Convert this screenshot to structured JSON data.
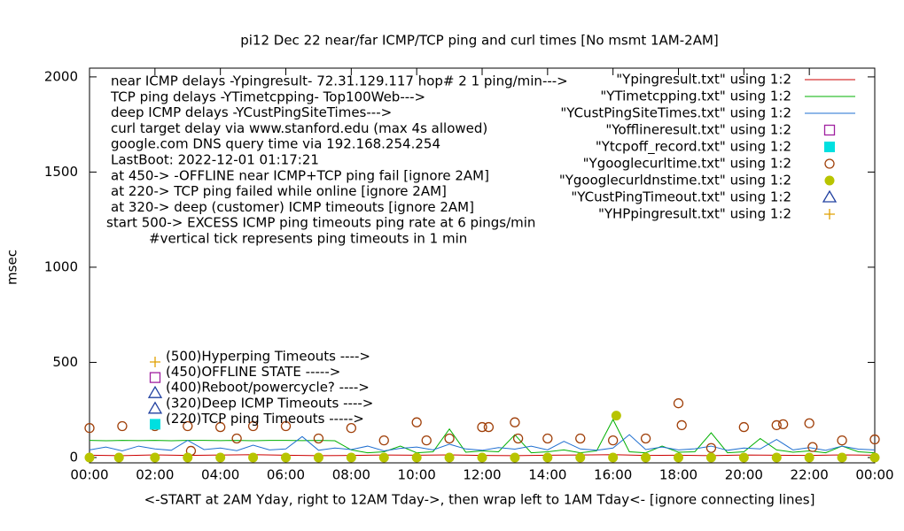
{
  "chart_data": {
    "type": "line",
    "title": "pi12 Dec 22  near/far ICMP/TCP ping and curl times [No msmt 1AM-2AM]",
    "xlabel": "<-START at 2AM Yday, right to 12AM Tday->, then wrap left to 1AM Tday<- [ignore connecting lines]",
    "ylabel": "msec",
    "xlim": [
      0,
      24
    ],
    "ylim": [
      -28,
      2046
    ],
    "xticks": [
      {
        "value": 0,
        "label": "00:00"
      },
      {
        "value": 2,
        "label": "02:00"
      },
      {
        "value": 4,
        "label": "04:00"
      },
      {
        "value": 6,
        "label": "06:00"
      },
      {
        "value": 8,
        "label": "08:00"
      },
      {
        "value": 10,
        "label": "10:00"
      },
      {
        "value": 12,
        "label": "12:00"
      },
      {
        "value": 14,
        "label": "14:00"
      },
      {
        "value": 16,
        "label": "16:00"
      },
      {
        "value": 18,
        "label": "18:00"
      },
      {
        "value": 20,
        "label": "20:00"
      },
      {
        "value": 22,
        "label": "22:00"
      },
      {
        "value": 24,
        "label": "00:00"
      }
    ],
    "yticks": [
      0,
      500,
      1000,
      1500,
      2000
    ],
    "annotations": [
      "near ICMP delays -Ypingresult- 72.31.129.117 hop# 2 1 ping/min--->",
      "TCP ping delays -YTimetcpping- Top100Web--->",
      "deep ICMP delays -YCustPingSiteTimes--->",
      "curl target delay via www.stanford.edu (max 4s allowed)",
      "google.com DNS query time via 192.168.254.254",
      "LastBoot: 2022-12-01 01:17:21",
      "at 450-> -OFFLINE near ICMP+TCP ping fail [ignore 2AM]",
      "at 220-> TCP ping failed while online [ignore 2AM]",
      "at 320-> deep (customer) ICMP timeouts [ignore 2AM]",
      "start 500-> EXCESS ICMP ping timeouts ping rate at 6 pings/min",
      "#vertical tick represents ping timeouts in 1 min"
    ],
    "key_notes": [
      {
        "text": "(500)Hyperping Timeouts ---->",
        "marker": "plus",
        "color": "#e0a000"
      },
      {
        "text": "(450)OFFLINE STATE ----->",
        "marker": "square-open",
        "color": "#a020a0"
      },
      {
        "text": "(400)Reboot/powercycle? ---->",
        "marker": "triangle-open",
        "color": "#2040a0"
      },
      {
        "text": "(320)Deep ICMP Timeouts ---->",
        "marker": "triangle-open",
        "color": "#2040a0"
      },
      {
        "text": "(220)TCP ping Timeouts ----->",
        "marker": "square-filled",
        "color": "#00e0e0"
      }
    ],
    "series": [
      {
        "name": "\"Ypingresult.txt\" using 1:2",
        "style": "line",
        "color": "#cc0000",
        "x": [
          0,
          1,
          2,
          3,
          4,
          5,
          6,
          7,
          8,
          9,
          10,
          11,
          12,
          13,
          14,
          15,
          16,
          17,
          18,
          19,
          20,
          21,
          22,
          23,
          24
        ],
        "values": [
          12,
          10,
          14,
          11,
          13,
          15,
          12,
          10,
          11,
          13,
          12,
          14,
          11,
          10,
          12,
          13,
          15,
          11,
          12,
          10,
          13,
          12,
          11,
          14,
          12
        ]
      },
      {
        "name": "\"YTimetcpping.txt\" using 1:2",
        "style": "line",
        "color": "#00b000",
        "x": [
          0,
          0.5,
          1,
          1.5,
          2,
          2.5,
          3,
          3.5,
          4,
          4.5,
          5,
          5.5,
          6,
          6.5,
          7,
          7.5,
          8,
          8.5,
          9,
          9.5,
          10,
          10.5,
          11,
          11.5,
          12,
          12.5,
          13,
          13.5,
          14,
          14.5,
          15,
          15.5,
          16,
          16.5,
          17,
          17.5,
          18,
          18.5,
          19,
          19.5,
          20,
          20.5,
          21,
          21.5,
          22,
          22.5,
          23,
          23.5,
          24
        ],
        "values": [
          90,
          88,
          90,
          89,
          90,
          88,
          90,
          90,
          89,
          90,
          88,
          90,
          90,
          89,
          90,
          88,
          40,
          25,
          30,
          60,
          25,
          30,
          150,
          28,
          35,
          30,
          120,
          25,
          30,
          40,
          25,
          35,
          200,
          30,
          25,
          60,
          28,
          30,
          130,
          25,
          30,
          100,
          40,
          28,
          35,
          25,
          60,
          30,
          25
        ]
      },
      {
        "name": "\"YCustPingSiteTimes.txt\" using 1:2",
        "style": "line",
        "color": "#1f6fd0",
        "x": [
          0,
          0.5,
          1,
          1.5,
          2,
          2.5,
          3,
          3.5,
          4,
          4.5,
          5,
          5.5,
          6,
          6.5,
          7,
          7.5,
          8,
          8.5,
          9,
          9.5,
          10,
          10.5,
          11,
          11.5,
          12,
          12.5,
          13,
          13.5,
          14,
          14.5,
          15,
          15.5,
          16,
          16.5,
          17,
          17.5,
          18,
          18.5,
          19,
          19.5,
          20,
          20.5,
          21,
          21.5,
          22,
          22.5,
          23,
          23.5,
          24
        ],
        "values": [
          40,
          55,
          35,
          60,
          45,
          38,
          90,
          42,
          50,
          36,
          65,
          40,
          45,
          110,
          38,
          50,
          42,
          60,
          35,
          48,
          55,
          40,
          70,
          45,
          38,
          52,
          44,
          60,
          40,
          85,
          45,
          38,
          50,
          120,
          42,
          55,
          40,
          46,
          60,
          38,
          50,
          45,
          95,
          40,
          52,
          38,
          60,
          44,
          40
        ]
      },
      {
        "name": "\"Yofflineresult.txt\" using 1:2",
        "style": "points",
        "marker": "square-open",
        "color": "#a020a0",
        "x": [],
        "values": []
      },
      {
        "name": "\"Ytcpoff_record.txt\" using 1:2",
        "style": "points",
        "marker": "square-filled",
        "color": "#00e0e0",
        "x": [],
        "values": []
      },
      {
        "name": "\"Ygooglecurltime.txt\" using 1:2",
        "style": "points",
        "marker": "circle-open",
        "color": "#a0400a",
        "x": [
          0,
          1,
          2,
          3,
          3.1,
          4,
          4.5,
          5,
          6,
          7,
          8,
          9,
          10,
          10.3,
          11,
          12,
          12.2,
          13,
          13.1,
          14,
          15,
          16,
          17,
          18,
          18.1,
          19,
          20,
          21,
          21.2,
          22,
          22.1,
          23,
          24
        ],
        "values": [
          155,
          165,
          165,
          165,
          35,
          160,
          100,
          165,
          165,
          100,
          155,
          90,
          185,
          90,
          100,
          160,
          160,
          185,
          100,
          100,
          100,
          90,
          100,
          285,
          170,
          50,
          160,
          170,
          175,
          180,
          55,
          90,
          95
        ]
      },
      {
        "name": "\"Ygooglecurldnstime.txt\" using 1:2",
        "style": "points",
        "marker": "circle-filled",
        "color": "#b8c400",
        "x": [
          0,
          0.9,
          2,
          3,
          4,
          5,
          6,
          7,
          8,
          9,
          10,
          11,
          12,
          13,
          14,
          15,
          16,
          16.1,
          17,
          18,
          19,
          20,
          21,
          22,
          23,
          24
        ],
        "values": [
          0,
          0,
          0,
          0,
          0,
          0,
          0,
          0,
          0,
          0,
          0,
          0,
          0,
          0,
          0,
          0,
          0,
          220,
          0,
          0,
          0,
          0,
          0,
          0,
          0,
          0
        ]
      },
      {
        "name": "\"YCustPingTimeout.txt\" using 1:2",
        "style": "points",
        "marker": "triangle-open",
        "color": "#2040a0",
        "x": [],
        "values": []
      },
      {
        "name": "\"YHPpingresult.txt\" using 1:2",
        "style": "points",
        "marker": "plus",
        "color": "#e0a000",
        "x": [],
        "values": []
      }
    ]
  }
}
